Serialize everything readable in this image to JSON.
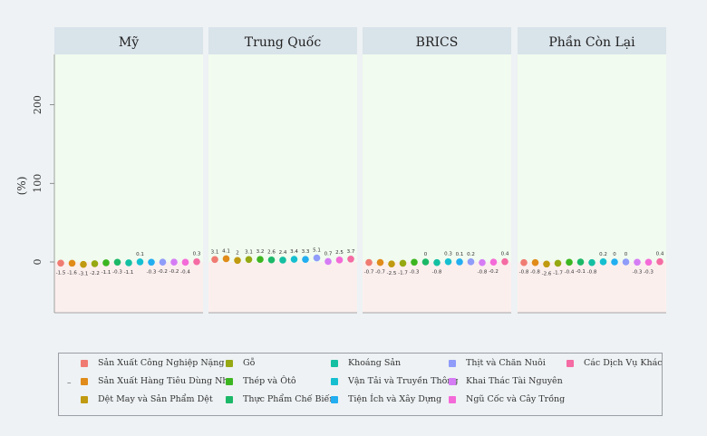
{
  "chart_data": {
    "type": "scatter",
    "ylabel": "(%)",
    "ylim": [
      -65,
      260
    ],
    "yticks": [
      0,
      100,
      200
    ],
    "facets": [
      "Mỹ",
      "Trung Quốc",
      "BRICS",
      "Phần Còn Lại"
    ],
    "categories": [
      "Sản Xuất Công Nghiệp Nặng",
      "Sản Xuất Hàng Tiêu Dùng Nhẹ",
      "Dệt May và Sản Phẩm Dệt",
      "Gỗ",
      "Thép và Ôtô",
      "Thực Phẩm Chế Biến",
      "Khoáng Sản",
      "Vận Tải và Truyền Thông",
      "Tiện Ích và Xây Dựng",
      "Thịt và Chăn Nuôi",
      "Khai Thác Tài Nguyên",
      "Ngũ Cốc và Cây Trồng",
      "Các Dịch Vụ Khác"
    ],
    "colors": [
      "#f07b72",
      "#e08b1a",
      "#c09a10",
      "#96a812",
      "#3db521",
      "#1cb868",
      "#14bfa2",
      "#16bfd0",
      "#22aef0",
      "#8f9cf9",
      "#d57cf5",
      "#f46ad8",
      "#f56ba3"
    ],
    "series": [
      {
        "facet": "Mỹ",
        "values": [
          -1.5,
          -1.6,
          -3.1,
          -2.2,
          -1.1,
          -0.3,
          -1.1,
          0.1,
          -0.3,
          -0.2,
          -0.2,
          -0.4,
          0.3
        ],
        "labels": [
          "-1.5",
          "-1.6",
          "-3.1",
          "-2.2",
          "-1.1",
          "-0.3",
          "-1.1",
          "0.1",
          "-0.3",
          "-0.2",
          "-0.2",
          "-0.4",
          "0.3"
        ]
      },
      {
        "facet": "Trung Quốc",
        "values": [
          3.1,
          4.1,
          2,
          3.1,
          3.2,
          2.6,
          2.4,
          3.4,
          3.3,
          5.1,
          0.7,
          2.5,
          3.7
        ],
        "labels": [
          "3.1",
          "4.1",
          "2",
          "3.1",
          "3.2",
          "2.6",
          "2.4",
          "3.4",
          "3.3",
          "5.1",
          "0.7",
          "2.5",
          "3.7"
        ]
      },
      {
        "facet": "BRICS",
        "values": [
          -0.7,
          -0.7,
          -2.5,
          -1.7,
          -0.3,
          0,
          -0.8,
          0.3,
          0.1,
          0.2,
          -0.8,
          -0.2,
          0.4
        ],
        "labels": [
          "-0.7",
          "-0.7",
          "-2.5",
          "-1.7",
          "-0.3",
          "0",
          "-0.8",
          "0.3",
          "0.1",
          "0.2",
          "-0.8",
          "-0.2",
          "0.4"
        ]
      },
      {
        "facet": "Phần Còn Lại",
        "values": [
          -0.8,
          -0.8,
          -2.6,
          -1.7,
          -0.4,
          -0.1,
          -0.8,
          0.2,
          0,
          0,
          -0.3,
          -0.3,
          0.4
        ],
        "labels": [
          "-0.8",
          "-0.8",
          "-2.6",
          "-1.7",
          "-0.4",
          "-0.1",
          "-0.8",
          "0.2",
          "0",
          "0",
          "-0.3",
          "-0.3",
          "0.4"
        ]
      }
    ],
    "positive_region_color": "#f1fbef",
    "negative_region_color": "#fbefee",
    "strip_color": "#d9e3ea",
    "legend_position": "bottom"
  }
}
